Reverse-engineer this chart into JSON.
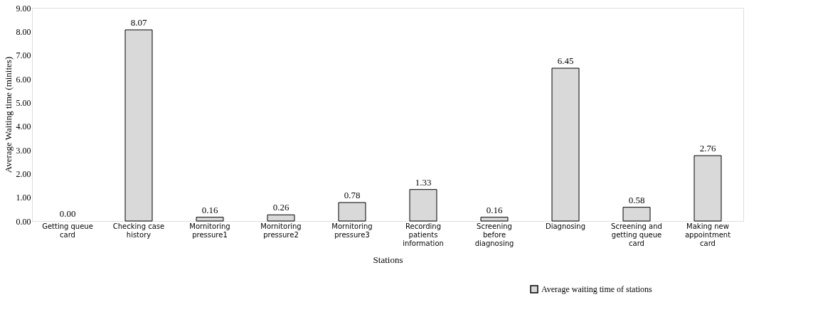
{
  "chart_data": {
    "type": "bar",
    "xlabel": "Stations",
    "ylabel": "Average Waiting time (minites)",
    "categories": [
      "Getting queue card",
      "Checking case history",
      "Mornitoring pressure1",
      "Mornitoring pressure2",
      "Mornitoring pressure3",
      "Recording patients information",
      "Screening before diagnosing",
      "Diagnosing",
      "Screening and getting queue card",
      "Making new appointment card"
    ],
    "series": [
      {
        "name": "Average waiting time of stations",
        "color": "#d9d9d9",
        "values": [
          0.0,
          8.07,
          0.16,
          0.26,
          0.78,
          1.33,
          0.16,
          6.45,
          0.58,
          2.76
        ],
        "value_labels": [
          "0.00",
          "8.07",
          "0.16",
          "0.26",
          "0.78",
          "1.33",
          "0.16",
          "6.45",
          "0.58",
          "2.76"
        ]
      }
    ],
    "ylim": [
      0,
      9
    ],
    "yticks": [
      {
        "value": 0,
        "label": "0.00"
      },
      {
        "value": 1,
        "label": "1.00"
      },
      {
        "value": 2,
        "label": "2.00"
      },
      {
        "value": 3,
        "label": "3.00"
      },
      {
        "value": 4,
        "label": "4.00"
      },
      {
        "value": 5,
        "label": "5.00"
      },
      {
        "value": 6,
        "label": "6.00"
      },
      {
        "value": 7,
        "label": "7.00"
      },
      {
        "value": 8,
        "label": "8.00"
      },
      {
        "value": 9,
        "label": "9.00"
      }
    ],
    "legend": "bottom right",
    "grid": false
  }
}
